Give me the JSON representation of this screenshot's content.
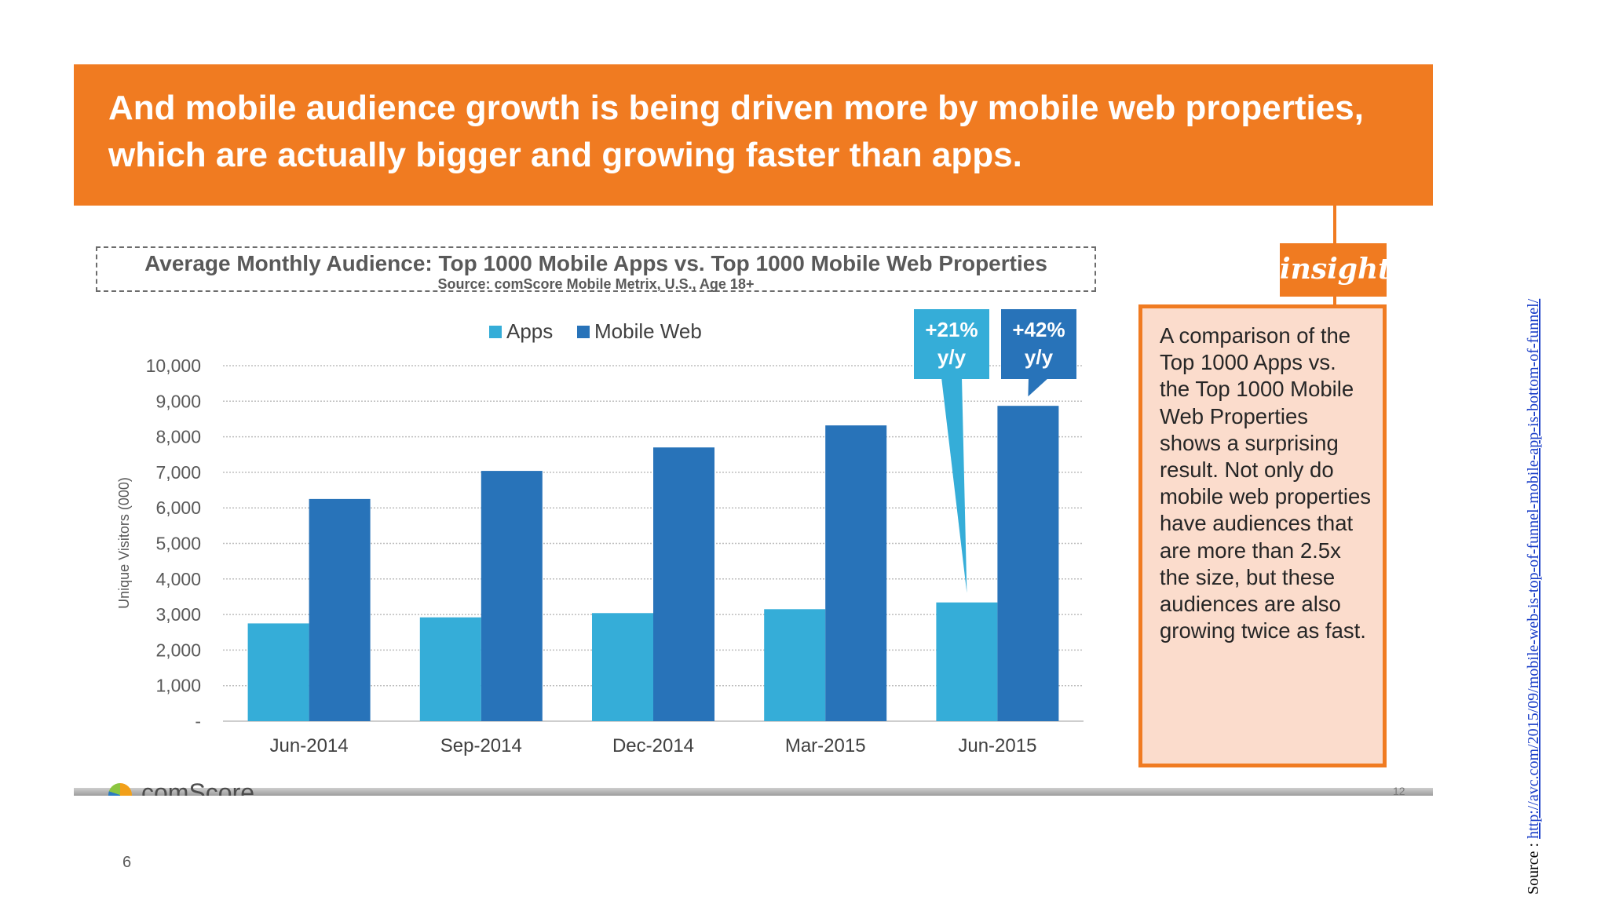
{
  "slide": {
    "page_number": "6",
    "source_label": "Source : ",
    "source_url": "http://avc.com/2015/09/mobile-web-is-top-of-funnel-mobile-app-is-bottom-of-funnel/"
  },
  "header": {
    "title": "And mobile audience growth is being driven more by mobile web properties, which are actually bigger and growing faster than apps."
  },
  "insight": {
    "badge": "insight",
    "text": "A comparison of the Top 1000 Apps vs. the Top 1000 Mobile Web Properties shows a surprising result. Not only do mobile web properties have audiences that are more than 2.5x the size, but these audiences are also growing twice as fast."
  },
  "footer": {
    "logo_text": "comScore",
    "slide_number": "12"
  },
  "colors": {
    "header": "#f07b21",
    "apps": "#35add8",
    "mobile_web": "#2873b9",
    "insight_fill": "#fbdccc"
  },
  "chart_data": {
    "type": "bar",
    "title": "Average Monthly Audience: Top 1000 Mobile Apps vs. Top 1000 Mobile Web Properties",
    "subtitle": "Source: comScore Mobile Metrix, U.S., Age 18+",
    "xlabel": "",
    "ylabel": "Unique Visitors (000)",
    "categories": [
      "Jun-2014",
      "Sep-2014",
      "Dec-2014",
      "Mar-2015",
      "Jun-2015"
    ],
    "series": [
      {
        "name": "Apps",
        "values": [
          2750,
          2920,
          3040,
          3150,
          3340
        ],
        "color": "#35add8"
      },
      {
        "name": "Mobile Web",
        "values": [
          6250,
          7040,
          7700,
          8320,
          8870
        ],
        "color": "#2873b9"
      }
    ],
    "ylim": [
      0,
      10000
    ],
    "yticks": [
      0,
      1000,
      2000,
      3000,
      4000,
      5000,
      6000,
      7000,
      8000,
      9000,
      10000
    ],
    "ytick_labels": [
      "-",
      "1,000",
      "2,000",
      "3,000",
      "4,000",
      "5,000",
      "6,000",
      "7,000",
      "8,000",
      "9,000",
      "10,000"
    ],
    "grid": true,
    "legend": "top",
    "annotations": [
      {
        "series": "Apps",
        "category": "Jun-2015",
        "line1": "+21%",
        "line2": "y/y",
        "color": "#35add8"
      },
      {
        "series": "Mobile Web",
        "category": "Jun-2015",
        "line1": "+42%",
        "line2": "y/y",
        "color": "#2873b9"
      }
    ]
  }
}
